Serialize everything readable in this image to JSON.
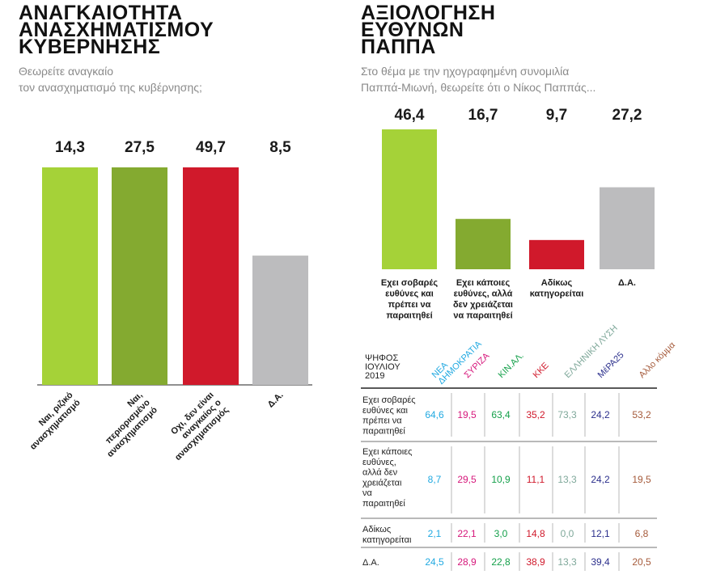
{
  "chart_data": [
    {
      "type": "bar",
      "title_lines": [
        "ΑΝΑΓΚΑΙΟΤΗΤΑ",
        "ΑΝΑΣΧΗΜΑΤΙΣΜΟΥ",
        "ΚΥΒΕΡΝΗΣΗΣ"
      ],
      "subtitle_lines": [
        "Θεωρείτε αναγκαίο",
        "τον ανασχηματισμό της κυβέρνησης;"
      ],
      "categories": [
        [
          "Ναι, ριζικό",
          "ανασχηματισμό"
        ],
        [
          "Ναι,",
          "περιορισμένο",
          "ανασχηματισμό"
        ],
        [
          "Οχι, δεν είναι",
          "αναγκαίος ο",
          "ανασχηματισμός"
        ],
        [
          "Δ.Α."
        ]
      ],
      "values": [
        14.3,
        27.5,
        49.7,
        8.5
      ],
      "value_labels": [
        "14,3",
        "27,5",
        "49,7",
        "8,5"
      ],
      "colors": [
        "#a5d238",
        "#84aa30",
        "#d0192b",
        "#bcbcbe"
      ],
      "ylim": [
        0,
        14.3
      ]
    },
    {
      "type": "bar",
      "title_lines": [
        "ΑΞΙΟΛΟΓΗΣΗ",
        "ΕΥΘΥΝΩΝ",
        "ΠΑΠΠΑ"
      ],
      "subtitle_lines": [
        "Στο θέμα με την ηχογραφημένη συνομιλία",
        "Παππά-Μιωνή, θεωρείτε ότι ο Νίκος Παππάς..."
      ],
      "categories": [
        [
          "Εχει σοβαρές",
          "ευθύνες και",
          "πρέπει να",
          "παραιτηθεί"
        ],
        [
          "Εχει κάποιες",
          "ευθύνες, αλλά",
          "δεν χρειάζεται",
          "να παραιτηθεί"
        ],
        [
          "Αδίκως",
          "κατηγορείται"
        ],
        [
          "Δ.Α."
        ]
      ],
      "values": [
        46.4,
        16.7,
        9.7,
        27.2
      ],
      "value_labels": [
        "46,4",
        "16,7",
        "9,7",
        "27,2"
      ],
      "colors": [
        "#a5d238",
        "#84aa30",
        "#d0192b",
        "#bcbcbe"
      ],
      "ylim": [
        0,
        46.4
      ]
    },
    {
      "type": "table",
      "corner_lines": [
        "ΨΗΦΟΣ",
        "ΙΟΥΛΙΟΥ",
        "2019"
      ],
      "columns": [
        {
          "lines": [
            "ΝΕΑ",
            "ΔΗΜΟΚΡΑΤΙΑ"
          ],
          "color": "#21a9e1"
        },
        {
          "lines": [
            "ΣΥΡΙΖΑ"
          ],
          "color": "#d6177b"
        },
        {
          "lines": [
            "ΚΙΝ.ΑΛ."
          ],
          "color": "#14a04a"
        },
        {
          "lines": [
            "ΚΚΕ"
          ],
          "color": "#d0192b"
        },
        {
          "lines": [
            "ΕΛΛΗΝΙΚΗ ΛΥΣΗ"
          ],
          "color": "#7fa89a"
        },
        {
          "lines": [
            "ΜέΡΑ25"
          ],
          "color": "#2b2f8c"
        },
        {
          "lines": [
            "Αλλο κόμμα"
          ],
          "color": "#a55a3a"
        }
      ],
      "rows": [
        {
          "label_lines": [
            "Εχει σοβαρές",
            "ευθύνες και",
            "πρέπει να",
            "παραιτηθεί"
          ],
          "values": [
            "64,6",
            "19,5",
            "63,4",
            "35,2",
            "73,3",
            "24,2",
            "53,2"
          ]
        },
        {
          "label_lines": [
            "Εχει κάποιες",
            "ευθύνες,",
            "αλλά δεν",
            "χρειάζεται",
            "να",
            "παραιτηθεί"
          ],
          "values": [
            "8,7",
            "29,5",
            "10,9",
            "11,1",
            "13,3",
            "24,2",
            "19,5"
          ]
        },
        {
          "label_lines": [
            "Αδίκως",
            "κατηγορείται"
          ],
          "values": [
            "2,1",
            "22,1",
            "3,0",
            "14,8",
            "0,0",
            "12,1",
            "6,8"
          ]
        },
        {
          "label_lines": [
            "Δ.Α."
          ],
          "values": [
            "24,5",
            "28,9",
            "22,8",
            "38,9",
            "13,3",
            "39,4",
            "20,5"
          ]
        }
      ]
    }
  ]
}
